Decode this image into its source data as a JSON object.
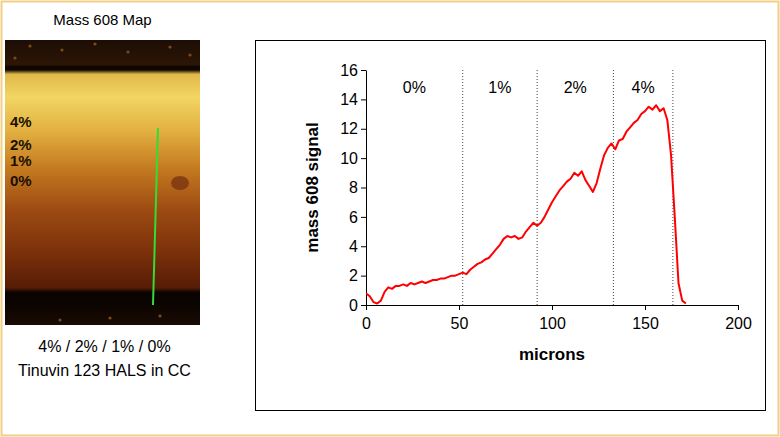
{
  "map_panel": {
    "title": "Mass 608 Map",
    "layer_labels": [
      "4%",
      "2%",
      "1%",
      "0%"
    ],
    "caption": [
      "4% / 2% / 1% / 0%",
      "Tinuvin 123 HALS in CC"
    ]
  },
  "chart_data": {
    "type": "line",
    "xlabel": "microns",
    "ylabel": "mass 608 signal",
    "color": "#ff0000",
    "xlim": [
      0,
      200
    ],
    "xticks": [
      0,
      50,
      100,
      150,
      200
    ],
    "ylim": [
      0,
      16
    ],
    "yticks": [
      0,
      2,
      4,
      6,
      8,
      10,
      12,
      14,
      16
    ],
    "region_labels": [
      "0%",
      "1%",
      "2%",
      "4%"
    ],
    "region_boundaries": [
      52,
      92,
      133,
      165
    ],
    "x": [
      0,
      2,
      4,
      6,
      8,
      10,
      12,
      14,
      16,
      18,
      20,
      22,
      24,
      26,
      28,
      30,
      32,
      34,
      36,
      38,
      40,
      42,
      44,
      46,
      48,
      50,
      52,
      54,
      56,
      58,
      60,
      62,
      64,
      66,
      68,
      70,
      72,
      74,
      76,
      78,
      80,
      82,
      84,
      86,
      88,
      90,
      92,
      94,
      96,
      98,
      100,
      102,
      104,
      106,
      108,
      110,
      112,
      114,
      116,
      118,
      120,
      122,
      124,
      126,
      128,
      130,
      132,
      134,
      136,
      138,
      140,
      142,
      144,
      146,
      148,
      150,
      152,
      154,
      156,
      158,
      160,
      162,
      164,
      166,
      168,
      170,
      172
    ],
    "values": [
      0.8,
      0.6,
      0.2,
      0.1,
      0.3,
      0.9,
      1.2,
      1.1,
      1.3,
      1.3,
      1.4,
      1.3,
      1.5,
      1.4,
      1.5,
      1.6,
      1.5,
      1.6,
      1.7,
      1.7,
      1.8,
      1.8,
      1.9,
      2.0,
      2.0,
      2.1,
      2.2,
      2.1,
      2.4,
      2.6,
      2.8,
      2.9,
      3.1,
      3.2,
      3.5,
      3.8,
      4.1,
      4.5,
      4.7,
      4.6,
      4.7,
      4.5,
      4.6,
      5.0,
      5.3,
      5.6,
      5.4,
      5.6,
      6.0,
      6.5,
      7.0,
      7.4,
      7.8,
      8.1,
      8.4,
      8.6,
      9.0,
      8.8,
      9.1,
      8.5,
      8.1,
      7.7,
      8.3,
      9.3,
      10.2,
      10.7,
      11.0,
      10.6,
      11.2,
      11.3,
      11.8,
      12.1,
      12.4,
      12.6,
      13.0,
      13.2,
      13.5,
      13.3,
      13.6,
      13.2,
      13.4,
      12.6,
      10.2,
      6.0,
      1.5,
      0.3,
      0.1
    ]
  }
}
